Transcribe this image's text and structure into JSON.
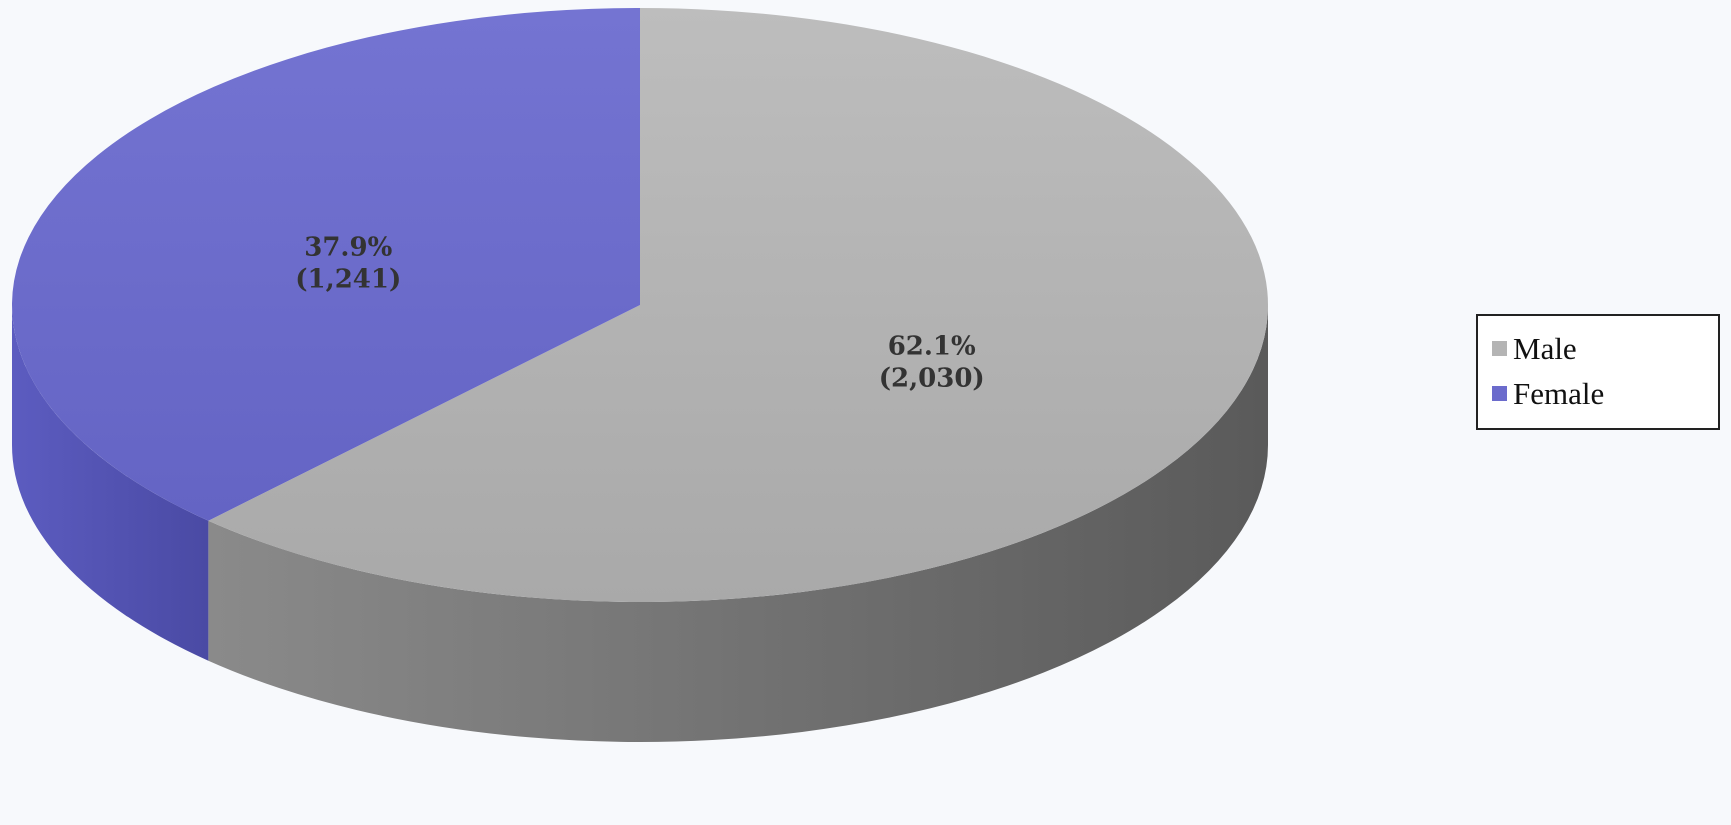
{
  "chart_data": {
    "type": "pie",
    "three_d": true,
    "title": "",
    "legend_position": "right",
    "slices": [
      {
        "name": "Male",
        "value": 2030,
        "percent": 62.1,
        "label_line1": "62.1%",
        "label_line2": "(2,030)",
        "color": "#b4b4b4",
        "side_color": "#777777"
      },
      {
        "name": "Female",
        "value": 1241,
        "percent": 37.9,
        "label_line1": "37.9%",
        "label_line2": "(1,241)",
        "color": "#6b6bcc",
        "side_color": "#5656b0"
      }
    ]
  },
  "legend": {
    "items": [
      {
        "label": "Male",
        "color": "#b4b4b4"
      },
      {
        "label": "Female",
        "color": "#6b6bcc"
      }
    ]
  }
}
